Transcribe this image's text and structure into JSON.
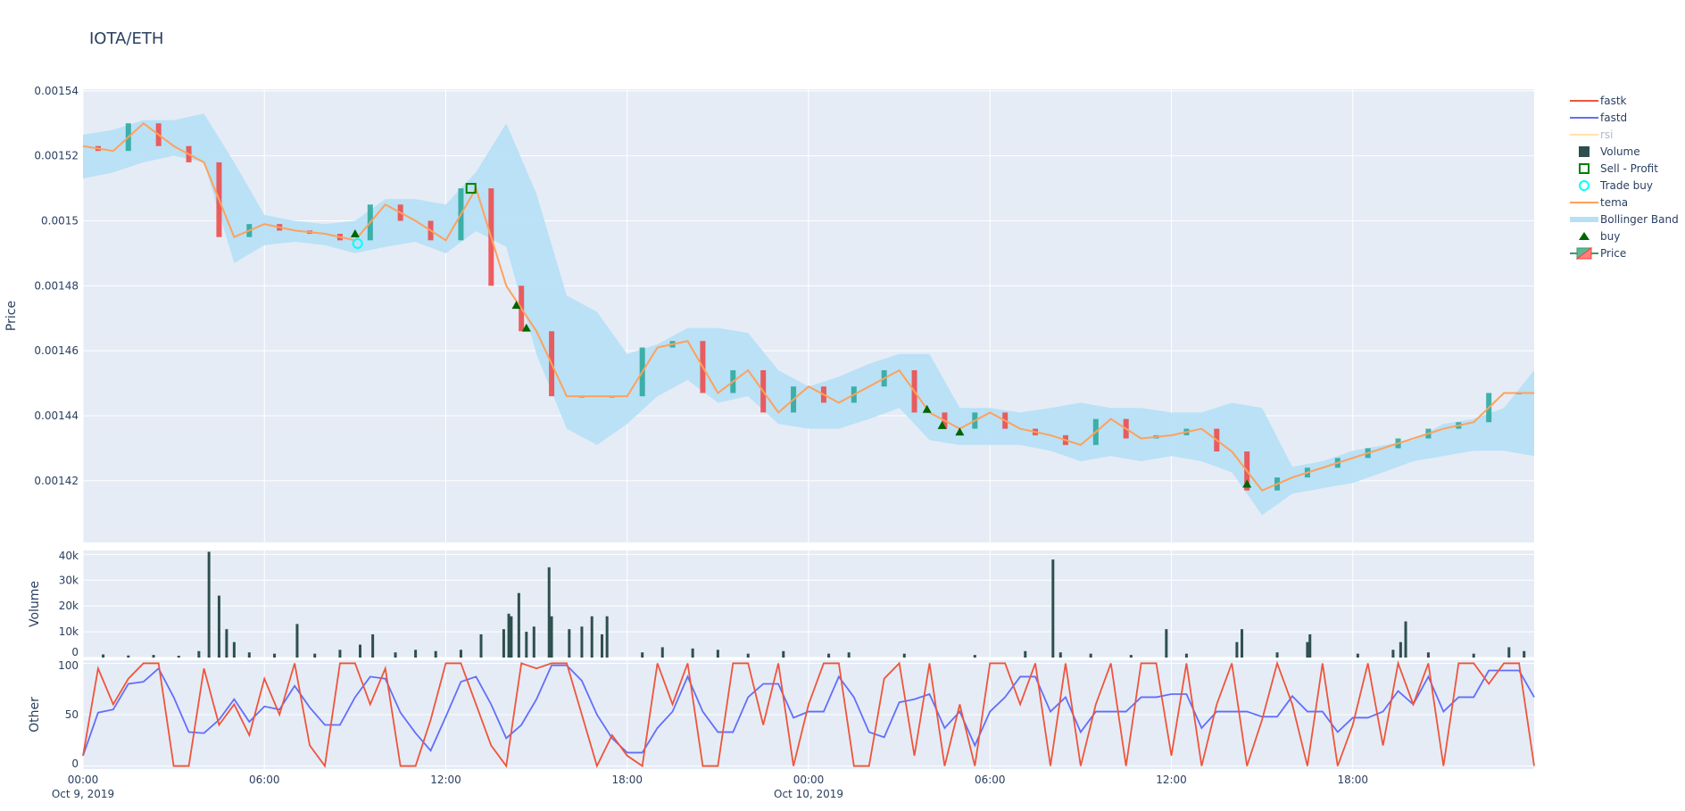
{
  "title": "IOTA/ETH",
  "legend": {
    "placement": "top-right",
    "items": [
      {
        "label": "fastk",
        "color": "#ef553b",
        "symbol": "line"
      },
      {
        "label": "fastd",
        "color": "#636efa",
        "symbol": "line"
      },
      {
        "label": "rsi",
        "color": "#ffe4a8",
        "symbol": "line",
        "hidden": true
      },
      {
        "label": "Volume",
        "color": "#2f4f4f",
        "symbol": "square"
      },
      {
        "label": "Sell - Profit",
        "color": "#008000",
        "symbol": "square-open"
      },
      {
        "label": "Trade buy",
        "color": "#00ffff",
        "symbol": "circle-open"
      },
      {
        "label": "tema",
        "color": "#ffa15a",
        "symbol": "line"
      },
      {
        "label": "Bollinger Band",
        "color": "#b7e0f5",
        "symbol": "band"
      },
      {
        "label": "buy",
        "color": "#006400",
        "symbol": "triangle-up"
      },
      {
        "label": "Price",
        "color": "#26a69a",
        "symbol": "candle"
      }
    ]
  },
  "x_axis": {
    "ticks": [
      {
        "t": "2019-10-09T00:00",
        "label": "00:00",
        "sub": "Oct 9, 2019"
      },
      {
        "t": "2019-10-09T06:00",
        "label": "06:00",
        "sub": ""
      },
      {
        "t": "2019-10-09T12:00",
        "label": "12:00",
        "sub": ""
      },
      {
        "t": "2019-10-09T18:00",
        "label": "18:00",
        "sub": ""
      },
      {
        "t": "2019-10-10T00:00",
        "label": "00:00",
        "sub": "Oct 10, 2019"
      },
      {
        "t": "2019-10-10T06:00",
        "label": "06:00",
        "sub": ""
      },
      {
        "t": "2019-10-10T12:00",
        "label": "12:00",
        "sub": ""
      },
      {
        "t": "2019-10-10T18:00",
        "label": "18:00",
        "sub": ""
      }
    ],
    "range": [
      "2019-10-09T00:00",
      "2019-10-11T00:00"
    ]
  },
  "chart_data": [
    {
      "type": "candlestick",
      "panel": "price",
      "ylabel": "Price",
      "ylim": [
        0.001401,
        0.0015405
      ],
      "yticks": [
        {
          "v": 0.00142,
          "label": "0.00142"
        },
        {
          "v": 0.00144,
          "label": "0.00144"
        },
        {
          "v": 0.00146,
          "label": "0.00146"
        },
        {
          "v": 0.00148,
          "label": "0.00148"
        },
        {
          "v": 0.0015,
          "label": "0.0015"
        },
        {
          "v": 0.00152,
          "label": "0.00152"
        },
        {
          "v": 0.00154,
          "label": "0.00154"
        }
      ],
      "grid": true,
      "colors": {
        "increasing": "#26a69a",
        "decreasing": "#ef4444",
        "tema": "#ffa15a",
        "band": "#b7e0f5"
      },
      "x": [
        "2019-10-09T00:00",
        "2019-10-09T01:00",
        "2019-10-09T02:00",
        "2019-10-09T03:00",
        "2019-10-09T04:00",
        "2019-10-09T05:00",
        "2019-10-09T06:00",
        "2019-10-09T07:00",
        "2019-10-09T08:00",
        "2019-10-09T09:00",
        "2019-10-09T10:00",
        "2019-10-09T11:00",
        "2019-10-09T12:00",
        "2019-10-09T13:00",
        "2019-10-09T14:00",
        "2019-10-09T15:00",
        "2019-10-09T16:00",
        "2019-10-09T17:00",
        "2019-10-09T18:00",
        "2019-10-09T19:00",
        "2019-10-09T20:00",
        "2019-10-09T21:00",
        "2019-10-09T22:00",
        "2019-10-09T23:00",
        "2019-10-10T00:00",
        "2019-10-10T01:00",
        "2019-10-10T02:00",
        "2019-10-10T03:00",
        "2019-10-10T04:00",
        "2019-10-10T05:00",
        "2019-10-10T06:00",
        "2019-10-10T07:00",
        "2019-10-10T08:00",
        "2019-10-10T09:00",
        "2019-10-10T10:00",
        "2019-10-10T11:00",
        "2019-10-10T12:00",
        "2019-10-10T13:00",
        "2019-10-10T14:00",
        "2019-10-10T15:00",
        "2019-10-10T16:00",
        "2019-10-10T17:00",
        "2019-10-10T18:00",
        "2019-10-10T19:00",
        "2019-10-10T20:00",
        "2019-10-10T21:00",
        "2019-10-10T22:00",
        "2019-10-10T23:00",
        "2019-10-11T00:00"
      ],
      "close": [
        0.001523,
        0.0015215,
        0.00153,
        0.001523,
        0.001518,
        0.001495,
        0.001499,
        0.001497,
        0.001496,
        0.001494,
        0.001505,
        0.0015,
        0.001494,
        0.00151,
        0.00148,
        0.001466,
        0.001446,
        0.001446,
        0.001446,
        0.001461,
        0.001463,
        0.001447,
        0.001454,
        0.001441,
        0.001449,
        0.001444,
        0.001449,
        0.001454,
        0.001441,
        0.001436,
        0.001441,
        0.001436,
        0.001434,
        0.001431,
        0.001439,
        0.001433,
        0.001434,
        0.001436,
        0.001429,
        0.001417,
        0.001421,
        0.001424,
        0.001427,
        0.00143,
        0.001433,
        0.001436,
        0.001438,
        0.001447,
        0.001447
      ],
      "tema": [
        0.001523,
        0.0015215,
        0.00153,
        0.001523,
        0.001518,
        0.001495,
        0.001499,
        0.001497,
        0.001496,
        0.001494,
        0.001505,
        0.0015,
        0.001494,
        0.00151,
        0.00148,
        0.001466,
        0.001446,
        0.001446,
        0.001446,
        0.001461,
        0.001463,
        0.001447,
        0.001454,
        0.001441,
        0.001449,
        0.001444,
        0.001449,
        0.001454,
        0.001441,
        0.001436,
        0.001441,
        0.001436,
        0.001434,
        0.001431,
        0.001439,
        0.001433,
        0.001434,
        0.001436,
        0.001429,
        0.001417,
        0.001421,
        0.001424,
        0.001427,
        0.00143,
        0.001433,
        0.001436,
        0.001438,
        0.001447,
        0.001447
      ],
      "bb_upper": [
        0.0015265,
        0.001528,
        0.001531,
        0.001531,
        0.001533,
        0.001518,
        0.0015018,
        0.0015,
        0.001499,
        0.0015,
        0.0015067,
        0.0015067,
        0.001505,
        0.001515,
        0.00153,
        0.0015083,
        0.001477,
        0.001472,
        0.001459,
        0.001462,
        0.001467,
        0.001467,
        0.0014655,
        0.001454,
        0.001449,
        0.001452,
        0.001456,
        0.001459,
        0.001459,
        0.0014424,
        0.0014424,
        0.001441,
        0.0014424,
        0.001444,
        0.0014424,
        0.0014424,
        0.001441,
        0.001441,
        0.001444,
        0.0014424,
        0.0014243,
        0.001426,
        0.0014292,
        0.0014309,
        0.0014325,
        0.0014375,
        0.001439,
        0.0014424,
        0.001454
      ],
      "bb_lower": [
        0.001513,
        0.0015149,
        0.001518,
        0.00152,
        0.001518,
        0.001487,
        0.0014925,
        0.0014935,
        0.0014925,
        0.00149,
        0.001492,
        0.0014935,
        0.00149,
        0.0014968,
        0.001492,
        0.0014589,
        0.001436,
        0.001431,
        0.0014375,
        0.001446,
        0.001451,
        0.001444,
        0.001446,
        0.0014375,
        0.001436,
        0.001436,
        0.001439,
        0.0014424,
        0.0014325,
        0.001431,
        0.001431,
        0.001431,
        0.0014292,
        0.001426,
        0.0014276,
        0.001426,
        0.0014276,
        0.001426,
        0.0014226,
        0.0014094,
        0.001416,
        0.0014177,
        0.0014193,
        0.0014226,
        0.001426,
        0.0014276,
        0.0014292,
        0.0014292,
        0.0014276
      ],
      "buy": [
        {
          "t": "2019-10-09T09:00",
          "v": 0.001496
        },
        {
          "t": "2019-10-09T14:20",
          "v": 0.001474
        },
        {
          "t": "2019-10-09T14:40",
          "v": 0.001467
        },
        {
          "t": "2019-10-10T03:55",
          "v": 0.001442
        },
        {
          "t": "2019-10-10T04:25",
          "v": 0.001437
        },
        {
          "t": "2019-10-10T05:00",
          "v": 0.001435
        },
        {
          "t": "2019-10-10T14:30",
          "v": 0.001419
        }
      ],
      "trade_buy": [
        {
          "t": "2019-10-09T09:05",
          "v": 0.001493
        }
      ],
      "sell_profit": [
        {
          "t": "2019-10-09T12:50",
          "v": 0.00151
        }
      ]
    },
    {
      "type": "bar",
      "panel": "volume",
      "ylabel": "Volume",
      "ylim": [
        0,
        41500
      ],
      "yticks": [
        {
          "v": 0,
          "label": "0"
        },
        {
          "v": 10000,
          "label": "10k"
        },
        {
          "v": 20000,
          "label": "20k"
        },
        {
          "v": 30000,
          "label": "30k"
        },
        {
          "v": 40000,
          "label": "40k"
        }
      ],
      "color": "#2f4f4f",
      "points": [
        {
          "t": "2019-10-09T00:40",
          "v": 1200
        },
        {
          "t": "2019-10-09T01:30",
          "v": 800
        },
        {
          "t": "2019-10-09T02:20",
          "v": 1000
        },
        {
          "t": "2019-10-09T03:10",
          "v": 700
        },
        {
          "t": "2019-10-09T03:50",
          "v": 2500
        },
        {
          "t": "2019-10-09T04:10",
          "v": 41000
        },
        {
          "t": "2019-10-09T04:30",
          "v": 24000
        },
        {
          "t": "2019-10-09T04:45",
          "v": 11000
        },
        {
          "t": "2019-10-09T05:00",
          "v": 6000
        },
        {
          "t": "2019-10-09T05:30",
          "v": 2000
        },
        {
          "t": "2019-10-09T06:20",
          "v": 1500
        },
        {
          "t": "2019-10-09T07:05",
          "v": 13000
        },
        {
          "t": "2019-10-09T07:40",
          "v": 1500
        },
        {
          "t": "2019-10-09T08:30",
          "v": 3000
        },
        {
          "t": "2019-10-09T09:10",
          "v": 5000
        },
        {
          "t": "2019-10-09T09:35",
          "v": 9000
        },
        {
          "t": "2019-10-09T10:20",
          "v": 2000
        },
        {
          "t": "2019-10-09T11:00",
          "v": 3000
        },
        {
          "t": "2019-10-09T11:40",
          "v": 2500
        },
        {
          "t": "2019-10-09T12:30",
          "v": 3000
        },
        {
          "t": "2019-10-09T13:10",
          "v": 9000
        },
        {
          "t": "2019-10-09T13:55",
          "v": 11000
        },
        {
          "t": "2019-10-09T14:05",
          "v": 17000
        },
        {
          "t": "2019-10-09T14:10",
          "v": 16000
        },
        {
          "t": "2019-10-09T14:25",
          "v": 25000
        },
        {
          "t": "2019-10-09T14:40",
          "v": 10000
        },
        {
          "t": "2019-10-09T14:55",
          "v": 12000
        },
        {
          "t": "2019-10-09T15:25",
          "v": 35000
        },
        {
          "t": "2019-10-09T15:30",
          "v": 16000
        },
        {
          "t": "2019-10-09T16:05",
          "v": 11000
        },
        {
          "t": "2019-10-09T16:30",
          "v": 12000
        },
        {
          "t": "2019-10-09T16:50",
          "v": 16000
        },
        {
          "t": "2019-10-09T17:20",
          "v": 16000
        },
        {
          "t": "2019-10-09T17:10",
          "v": 9000
        },
        {
          "t": "2019-10-09T18:30",
          "v": 2000
        },
        {
          "t": "2019-10-09T19:10",
          "v": 4000
        },
        {
          "t": "2019-10-09T20:10",
          "v": 3500
        },
        {
          "t": "2019-10-09T21:00",
          "v": 3000
        },
        {
          "t": "2019-10-09T22:00",
          "v": 1500
        },
        {
          "t": "2019-10-09T23:10",
          "v": 2500
        },
        {
          "t": "2019-10-10T00:40",
          "v": 1500
        },
        {
          "t": "2019-10-10T01:20",
          "v": 2000
        },
        {
          "t": "2019-10-10T03:10",
          "v": 1500
        },
        {
          "t": "2019-10-10T05:30",
          "v": 1000
        },
        {
          "t": "2019-10-10T07:10",
          "v": 2500
        },
        {
          "t": "2019-10-10T08:05",
          "v": 38000
        },
        {
          "t": "2019-10-10T08:20",
          "v": 2000
        },
        {
          "t": "2019-10-10T09:20",
          "v": 1500
        },
        {
          "t": "2019-10-10T10:40",
          "v": 1000
        },
        {
          "t": "2019-10-10T11:50",
          "v": 11000
        },
        {
          "t": "2019-10-10T12:30",
          "v": 1500
        },
        {
          "t": "2019-10-10T14:10",
          "v": 6000
        },
        {
          "t": "2019-10-10T14:20",
          "v": 11000
        },
        {
          "t": "2019-10-10T15:30",
          "v": 2000
        },
        {
          "t": "2019-10-10T16:30",
          "v": 6000
        },
        {
          "t": "2019-10-10T16:35",
          "v": 9000
        },
        {
          "t": "2019-10-10T18:10",
          "v": 1500
        },
        {
          "t": "2019-10-10T19:20",
          "v": 3000
        },
        {
          "t": "2019-10-10T19:35",
          "v": 6000
        },
        {
          "t": "2019-10-10T19:45",
          "v": 14000
        },
        {
          "t": "2019-10-10T20:30",
          "v": 2000
        },
        {
          "t": "2019-10-10T22:00",
          "v": 1500
        },
        {
          "t": "2019-10-10T23:10",
          "v": 4000
        },
        {
          "t": "2019-10-10T23:40",
          "v": 2500
        }
      ]
    },
    {
      "type": "line",
      "panel": "other",
      "ylabel": "Other",
      "ylim": [
        -3,
        103
      ],
      "yticks": [
        {
          "v": 0,
          "label": "0"
        },
        {
          "v": 50,
          "label": "50"
        },
        {
          "v": 100,
          "label": "100"
        }
      ],
      "x_start": "2019-10-09T00:00",
      "x_step_minutes": 30,
      "series": [
        {
          "name": "fastk",
          "color": "#ef553b",
          "values": [
            10,
            95,
            60,
            85,
            100,
            100,
            0,
            0,
            95,
            40,
            60,
            30,
            85,
            50,
            100,
            20,
            0,
            100,
            100,
            60,
            95,
            0,
            0,
            45,
            100,
            100,
            60,
            20,
            0,
            100,
            95,
            100,
            100,
            50,
            0,
            30,
            10,
            0,
            100,
            60,
            100,
            0,
            0,
            100,
            100,
            40,
            100,
            0,
            60,
            100,
            100,
            0,
            0,
            85,
            100,
            10,
            100,
            0,
            60,
            0,
            100,
            100,
            60,
            100,
            0,
            100,
            0,
            60,
            100,
            0,
            100,
            100,
            10,
            100,
            0,
            60,
            100,
            0,
            45,
            100,
            60,
            0,
            100,
            0,
            40,
            100,
            20,
            100,
            60,
            100,
            0,
            100,
            100,
            80,
            100,
            100,
            0
          ]
        },
        {
          "name": "fastd",
          "color": "#636efa",
          "values": [
            10,
            52,
            55,
            80,
            82,
            95,
            67,
            33,
            32,
            45,
            65,
            43,
            58,
            55,
            78,
            57,
            40,
            40,
            67,
            87,
            85,
            52,
            32,
            15,
            48,
            82,
            87,
            60,
            27,
            40,
            65,
            98,
            98,
            83,
            50,
            27,
            13,
            13,
            37,
            53,
            87,
            53,
            33,
            33,
            67,
            80,
            80,
            47,
            53,
            53,
            87,
            67,
            33,
            28,
            62,
            65,
            70,
            37,
            53,
            20,
            53,
            67,
            87,
            87,
            53,
            67,
            33,
            53,
            53,
            53,
            67,
            67,
            70,
            70,
            37,
            53,
            53,
            53,
            48,
            48,
            68,
            53,
            53,
            33,
            47,
            47,
            53,
            73,
            60,
            87,
            53,
            67,
            67,
            93,
            93,
            93,
            67
          ]
        }
      ]
    }
  ]
}
